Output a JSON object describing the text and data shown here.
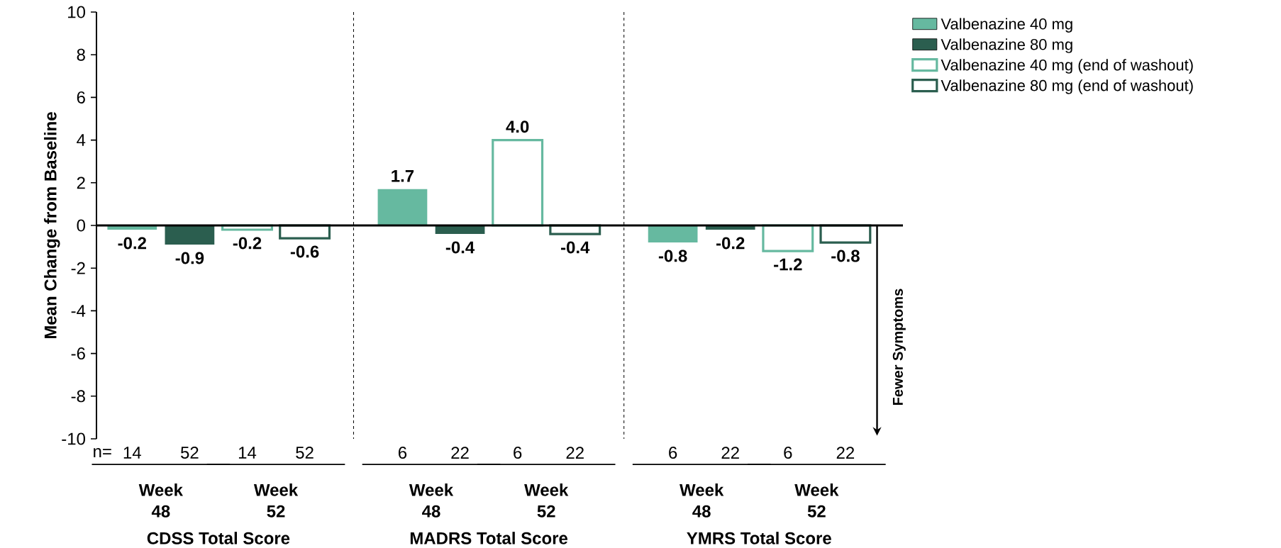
{
  "chart_data": {
    "type": "bar",
    "ylabel": "Mean Change from Baseline",
    "categories": [
      "Week 48",
      "Week 52",
      "Week 48",
      "Week 52",
      "Week 48",
      "Week 52"
    ],
    "series": [
      {
        "name": "Valbenazine 40 mg",
        "color": "#66b9a0",
        "values": [
          -0.2,
          null,
          1.7,
          null,
          -0.8,
          null
        ],
        "value_labels": [
          "-0.2",
          null,
          "1.7",
          null,
          "-0.8",
          null
        ]
      },
      {
        "name": "Valbenazine 80 mg",
        "color": "#2b5e4f",
        "values": [
          -0.9,
          null,
          -0.4,
          null,
          -0.2,
          null
        ],
        "value_labels": [
          "-0.9",
          null,
          "-0.4",
          null,
          "-0.2",
          null
        ]
      },
      {
        "name": "Valbenazine 40 mg (end of washout)",
        "color": "#66b9a0",
        "values": [
          null,
          -0.2,
          null,
          4.0,
          null,
          -1.2
        ],
        "value_labels": [
          null,
          "-0.2",
          null,
          "4.0",
          null,
          "-1.2"
        ]
      },
      {
        "name": "Valbenazine 80 mg (end of washout)",
        "color": "#2b5e4f",
        "values": [
          null,
          -0.6,
          null,
          -0.4,
          null,
          -0.8
        ],
        "value_labels": [
          null,
          "-0.6",
          null,
          "-0.4",
          null,
          "-0.8"
        ]
      }
    ],
    "ylim": [
      -10,
      10
    ],
    "yticks": [
      -10,
      -8,
      -6,
      -4,
      -2,
      0,
      2,
      4,
      6,
      8,
      10
    ],
    "legend": "top right",
    "grid": false,
    "annotations": [
      "n=",
      "14",
      "52",
      "14",
      "52",
      "6",
      "22",
      "6",
      "22",
      "6",
      "22",
      "6",
      "22",
      "CDSS Total Score",
      "MADRS Total Score",
      "YMRS Total Score",
      "Fewer Symptoms"
    ]
  }
}
